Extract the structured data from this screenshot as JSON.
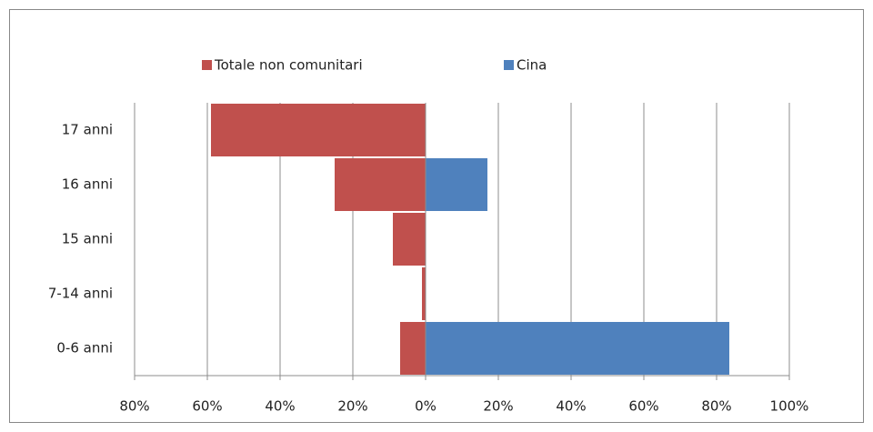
{
  "chart_data": {
    "type": "bar",
    "orientation": "horizontal",
    "categories": [
      "17 anni",
      "16 anni",
      "15 anni",
      "7-14 anni",
      "0-6 anni"
    ],
    "series": [
      {
        "name": "Totale non comunitari",
        "color": "#c0504d",
        "values": [
          -59,
          -25,
          -9,
          -1,
          -7
        ]
      },
      {
        "name": "Cina",
        "color": "#4f81bd",
        "values": [
          0,
          17,
          0,
          0,
          83.5
        ]
      }
    ],
    "xlim": [
      -80,
      100
    ],
    "xticks": [
      {
        "value": -80,
        "label": "80%"
      },
      {
        "value": -60,
        "label": "60%"
      },
      {
        "value": -40,
        "label": "40%"
      },
      {
        "value": -20,
        "label": "20%"
      },
      {
        "value": 0,
        "label": "0%"
      },
      {
        "value": 20,
        "label": "20%"
      },
      {
        "value": 40,
        "label": "40%"
      },
      {
        "value": 60,
        "label": "60%"
      },
      {
        "value": 80,
        "label": "80%"
      },
      {
        "value": 100,
        "label": "100%"
      }
    ],
    "grid": true,
    "legend": "top"
  }
}
